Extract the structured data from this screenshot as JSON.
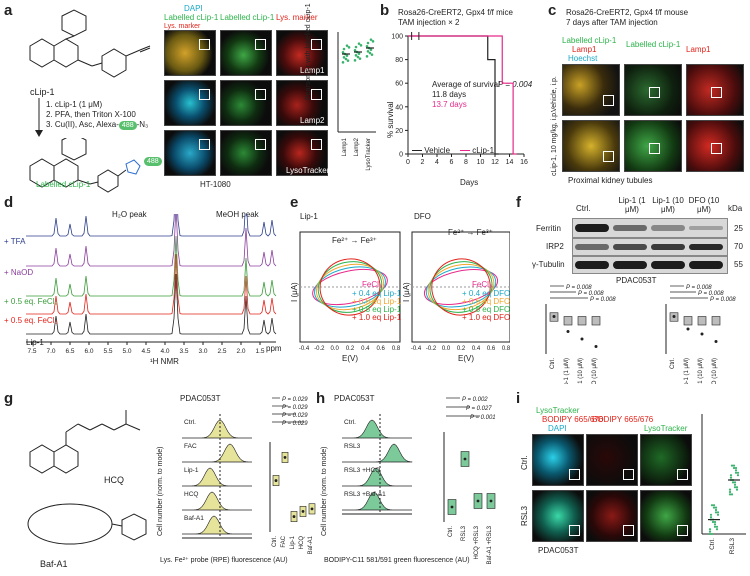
{
  "panels": {
    "a": {
      "label": "a",
      "compound": "cLip-1",
      "steps": [
        "1. cLip-1 (1 μM)",
        "2. PFA, then Triton X-100",
        "3. Cu(II), Asc, Alexa-"
      ],
      "azide_tag": "488",
      "azide_suffix": "-N₃",
      "product_label": "Labelled cLip-1",
      "product_tag": "488",
      "channels": [
        "DAPI",
        "Labelled cLip-1",
        "Labelled cLip-1",
        "Lys. marker"
      ],
      "merge_label": "Lys. marker",
      "row_markers": [
        "Lamp1",
        "Lamp2",
        "LysoTracker"
      ],
      "cell_line": "HT-1080",
      "ylabel": "Pearson's r with labelled cLip-1",
      "categories": [
        "Lamp1",
        "Lamp2",
        "LysoTracker"
      ],
      "yticks": [
        "1.0",
        "0.5",
        "0.0"
      ]
    },
    "b": {
      "label": "b",
      "title": "Rosa26-CreERT2, Gpx4 f/f mice",
      "injection": "TAM injection × 2",
      "avg_label": "Average of survival",
      "avg_vehicle": "11.8 days",
      "avg_clip": "13.7 days",
      "pvalue": "P = 0.004",
      "ylabel": "% survival",
      "xlabel": "Days",
      "legend": [
        "Vehicle",
        "cLip-1"
      ]
    },
    "c": {
      "label": "c",
      "title1": "Rosa26-CreERT2, Gpx4 f/f mouse",
      "title2": "7 days after TAM injection",
      "channels": [
        "Labelled cLip-1",
        "Lamp1",
        "Hoechst",
        "Labelled cLip-1",
        "Lamp1"
      ],
      "rows": [
        "Vehicle, i.p.",
        "cLip-1, 10 mg/kg, i.p."
      ],
      "caption": "Proximal kidney tubules"
    },
    "d": {
      "label": "d",
      "peak1": "H₂O peak",
      "peak2": "MeOH peak",
      "traces": [
        "+ TFA",
        "+ NaOD",
        "+ 0.5 eq. FeCl₂",
        "+ 0.5 eq. FeCl₃",
        "Lip-1"
      ],
      "xlabel": "¹H NMR",
      "unit": "ppm"
    },
    "e": {
      "label": "e",
      "left_title": "Lip-1",
      "right_title": "DFO",
      "redox_top": "Fe²⁺ → Fe³⁺",
      "redox_bottom_l": "Fe³⁺",
      "redox_bottom_r": "Fe²⁺",
      "ylabel": "I (μA)",
      "xlabel": "E(V)",
      "legend_left": [
        "FeCl₃",
        "+ 0.4 eq Lip-1",
        "+ 0.6 eq Lip-1",
        "+ 0.8 eq Lip-1",
        "+ 1.0 eq Lip-1"
      ],
      "legend_right": [
        "FeCl₃",
        "+ 0.4 eq DFO",
        "+ 0.6 eq DFO",
        "+ 0.8 eq DFO",
        "+ 1.0 eq DFO"
      ]
    },
    "f": {
      "label": "f",
      "columns": [
        "Ctrl.",
        "Lip-1 (1 μM)",
        "Lip-1 (10 μM)",
        "DFO (10 μM)"
      ],
      "bands": [
        "Ferritin",
        "IRP2",
        "γ-Tubulin"
      ],
      "kda": "kDa",
      "kda_marks": [
        "25",
        "70",
        "55"
      ],
      "cell_line": "PDAC053T",
      "ylabel_left": "Log₂(FC ferritin level)",
      "ylabel_right": "Log₂(FC IRP2 level)",
      "pvalues": [
        "P = 0.008",
        "P = 0.008",
        "P = 0.008"
      ],
      "categories": [
        "Ctrl.",
        "Lip-1 (1 μM)",
        "Lip-1 (10 μM)",
        "DFO (10 μM)"
      ]
    },
    "g": {
      "label": "g",
      "cmpd1": "HCQ",
      "cmpd2": "Baf-A1",
      "cell_line": "PDAC053T",
      "rows": [
        "Ctrl.",
        "FAC",
        "Lip-1",
        "HCQ",
        "Baf-A1"
      ],
      "ylabel": "Cell number (norm. to mode)",
      "xlabel": "Lys. Fe²⁺ probe (RPE) fluorescence (AU)",
      "xticks": [
        "10³",
        "10⁴",
        "10⁵"
      ],
      "pvalues": [
        "P = 0.029",
        "P = 0.029",
        "P = 0.029",
        "P = 0.029"
      ],
      "bar_ylabel": "log₂(MFI FC) RPE vs. Ctrl.",
      "categories": [
        "Ctrl.",
        "FAC",
        "Lip-1",
        "HCQ",
        "Baf-A1"
      ]
    },
    "h": {
      "label": "h",
      "cell_line": "PDAC053T",
      "rows": [
        "Ctrl.",
        "RSL3",
        "RSL3 +HCQ",
        "RSL3 +Baf-A1"
      ],
      "ylabel": "Cell number (norm. to mode)",
      "xlabel": "BODIPY-C11 581/591 green fluorescence (AU)",
      "xticks": [
        "10³",
        "10⁴",
        "10⁵"
      ],
      "pvalues": [
        "P = 0.002",
        "P = 0.027",
        "P = 0.001"
      ],
      "bar_ylabel": "log₂(MFI FC) of BODIPY-C11 581/591 vs. Ctrl.",
      "categories": [
        "Ctrl.",
        "RSL3",
        "HCQ +RSL3",
        "Baf-A1 +RSL3"
      ]
    },
    "i": {
      "label": "i",
      "channels": [
        "LysoTracker",
        "BODIPY 665/676",
        "DAPI",
        "BODIPY 665/676",
        "LysoTracker"
      ],
      "rows": [
        "Ctrl.",
        "RSL3"
      ],
      "cell_line": "PDAC053T",
      "ylabel": "Pearson's r LysoTracker with BODIPY 665/676",
      "categories": [
        "Ctrl.",
        "RSL3"
      ]
    }
  },
  "chart_data": [
    {
      "type": "scatter",
      "panel": "a",
      "ylabel": "Pearson's r with labelled cLip-1",
      "categories": [
        "Lamp1",
        "Lamp2",
        "LysoTracker"
      ],
      "ylim": [
        0,
        1
      ],
      "series": [
        {
          "values": [
            0.78,
            0.8,
            0.84
          ]
        }
      ]
    },
    {
      "type": "line",
      "panel": "b",
      "xlabel": "Days",
      "ylabel": "% survival",
      "xlim": [
        0,
        16
      ],
      "ylim": [
        0,
        100
      ],
      "xticks": [
        0,
        2,
        4,
        6,
        8,
        10,
        12,
        14,
        16
      ],
      "yticks": [
        0,
        20,
        40,
        60,
        80,
        100
      ],
      "series": [
        {
          "name": "Vehicle",
          "x": [
            0,
            11,
            11,
            12,
            12,
            12.5
          ],
          "y": [
            100,
            100,
            80,
            80,
            0,
            0
          ]
        },
        {
          "name": "cLip-1",
          "x": [
            0,
            13,
            13,
            14.5,
            14.5,
            15
          ],
          "y": [
            100,
            100,
            60,
            60,
            0,
            0
          ]
        }
      ]
    },
    {
      "type": "bar",
      "panel": "f-left",
      "ylabel": "Log₂(FC ferritin level)",
      "categories": [
        "Ctrl.",
        "Lip-1 (1 μM)",
        "Lip-1 (10 μM)",
        "DFO (10 μM)"
      ],
      "values": [
        0,
        -0.6,
        -0.9,
        -1.2
      ],
      "ylim": [
        -1.5,
        0.5
      ]
    },
    {
      "type": "bar",
      "panel": "f-right",
      "ylabel": "Log₂(FC IRP2 level)",
      "categories": [
        "Ctrl.",
        "Lip-1 (1 μM)",
        "Lip-1 (10 μM)",
        "DFO (10 μM)"
      ],
      "values": [
        0,
        -0.5,
        -0.7,
        -1.0
      ],
      "ylim": [
        -1.5,
        0.5
      ]
    },
    {
      "type": "bar",
      "panel": "g",
      "ylabel": "log₂(MFI FC) RPE vs. Ctrl.",
      "categories": [
        "Ctrl.",
        "FAC",
        "Lip-1",
        "HCQ",
        "Baf-A1"
      ],
      "values": [
        0,
        0.9,
        -1.4,
        -1.2,
        -1.1
      ],
      "ylim": [
        -2,
        1.5
      ]
    },
    {
      "type": "bar",
      "panel": "h",
      "ylabel": "log₂(MFI FC) of BODIPY-C11 581/591 vs. Ctrl.",
      "categories": [
        "Ctrl.",
        "RSL3",
        "HCQ +RSL3",
        "Baf-A1 +RSL3"
      ],
      "values": [
        0,
        1.6,
        0.2,
        0.2
      ],
      "ylim": [
        -0.5,
        2.5
      ]
    },
    {
      "type": "scatter",
      "panel": "i",
      "ylabel": "Pearson's r LysoTracker with BODIPY 665/676",
      "categories": [
        "Ctrl.",
        "RSL3"
      ],
      "ylim": [
        0,
        1
      ],
      "series": [
        {
          "values": [
            0.12,
            0.45
          ]
        }
      ]
    }
  ]
}
